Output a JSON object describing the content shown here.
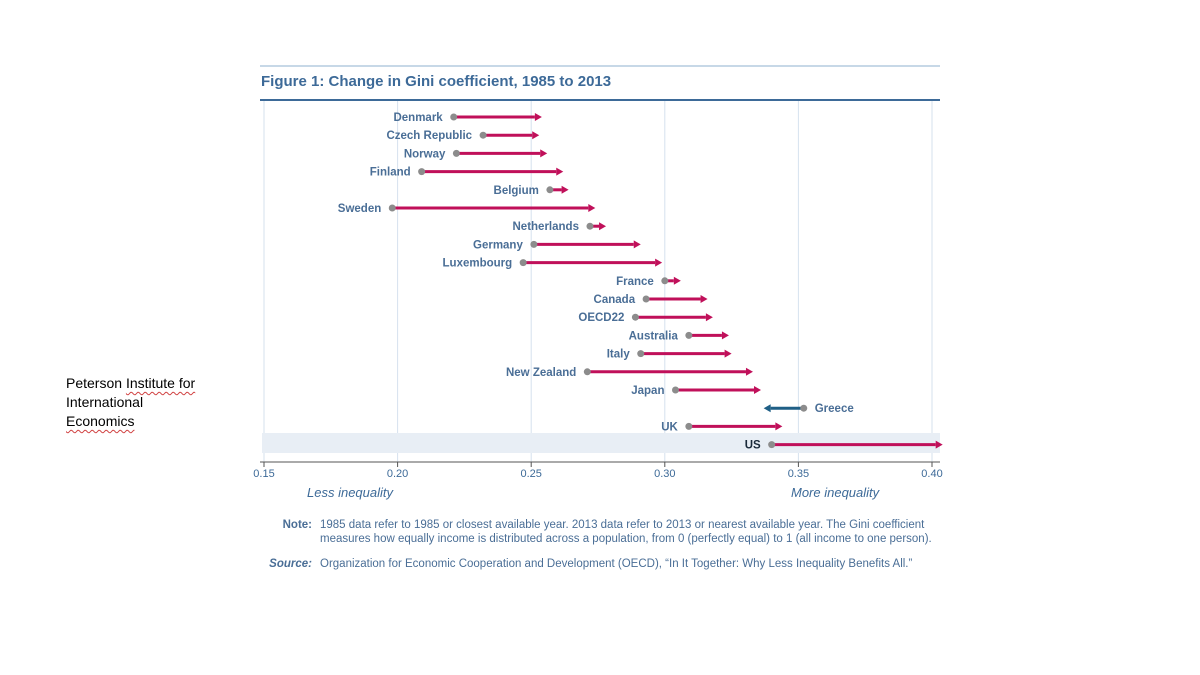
{
  "side_note": {
    "line1_plain": "Peterson ",
    "line1_marked": "Institute for",
    "line2": "International",
    "line3_marked": "Economics"
  },
  "figure": {
    "title": "Figure 1: Change in Gini coefficient, 1985 to 2013"
  },
  "chart_data": {
    "type": "dumbbell",
    "title": "Figure 1: Change in Gini coefficient, 1985 to 2013",
    "xlim": [
      0.15,
      0.4
    ],
    "x_ticks": [
      "0.15",
      "0.20",
      "0.25",
      "0.30",
      "0.35",
      "0.40"
    ],
    "x_tick_values": [
      0.15,
      0.2,
      0.25,
      0.3,
      0.35,
      0.4
    ],
    "left_annotation": "Less inequality",
    "right_annotation": "More inequality",
    "grid": "vertical",
    "highlighted_country": "US",
    "increase_color": "#c0105a",
    "decrease_color": "#1f5f86",
    "start_marker_color": "#8c8c8c",
    "label_color": "#4a6e96",
    "highlight_label_color": "#1a2a3a",
    "highlight_band_color": "#e8eef5",
    "countries": [
      {
        "name": "Denmark",
        "gini_1985": 0.221,
        "gini_2013": 0.254
      },
      {
        "name": "Czech Republic",
        "gini_1985": 0.232,
        "gini_2013": 0.253
      },
      {
        "name": "Norway",
        "gini_1985": 0.222,
        "gini_2013": 0.256
      },
      {
        "name": "Finland",
        "gini_1985": 0.209,
        "gini_2013": 0.262
      },
      {
        "name": "Belgium",
        "gini_1985": 0.257,
        "gini_2013": 0.264
      },
      {
        "name": "Sweden",
        "gini_1985": 0.198,
        "gini_2013": 0.274
      },
      {
        "name": "Netherlands",
        "gini_1985": 0.272,
        "gini_2013": 0.278
      },
      {
        "name": "Germany",
        "gini_1985": 0.251,
        "gini_2013": 0.291
      },
      {
        "name": "Luxembourg",
        "gini_1985": 0.247,
        "gini_2013": 0.299
      },
      {
        "name": "France",
        "gini_1985": 0.3,
        "gini_2013": 0.306
      },
      {
        "name": "Canada",
        "gini_1985": 0.293,
        "gini_2013": 0.316
      },
      {
        "name": "OECD22",
        "gini_1985": 0.289,
        "gini_2013": 0.318
      },
      {
        "name": "Australia",
        "gini_1985": 0.309,
        "gini_2013": 0.324
      },
      {
        "name": "Italy",
        "gini_1985": 0.291,
        "gini_2013": 0.325
      },
      {
        "name": "New Zealand",
        "gini_1985": 0.271,
        "gini_2013": 0.333
      },
      {
        "name": "Japan",
        "gini_1985": 0.304,
        "gini_2013": 0.336
      },
      {
        "name": "Greece",
        "gini_1985": 0.352,
        "gini_2013": 0.337
      },
      {
        "name": "UK",
        "gini_1985": 0.309,
        "gini_2013": 0.344
      },
      {
        "name": "US",
        "gini_1985": 0.34,
        "gini_2013": 0.404
      }
    ]
  },
  "note": {
    "label": "Note:",
    "text": "1985 data refer to 1985 or closest available year. 2013 data refer to 2013 or nearest available year. The Gini coefficient measures how equally income is distributed across a population, from 0 (perfectly equal) to 1 (all income to one person)."
  },
  "source": {
    "label": "Source:",
    "text": "Organization for Economic Cooperation and Development (OECD), “In It Together: Why Less Inequality Benefits All.”"
  }
}
